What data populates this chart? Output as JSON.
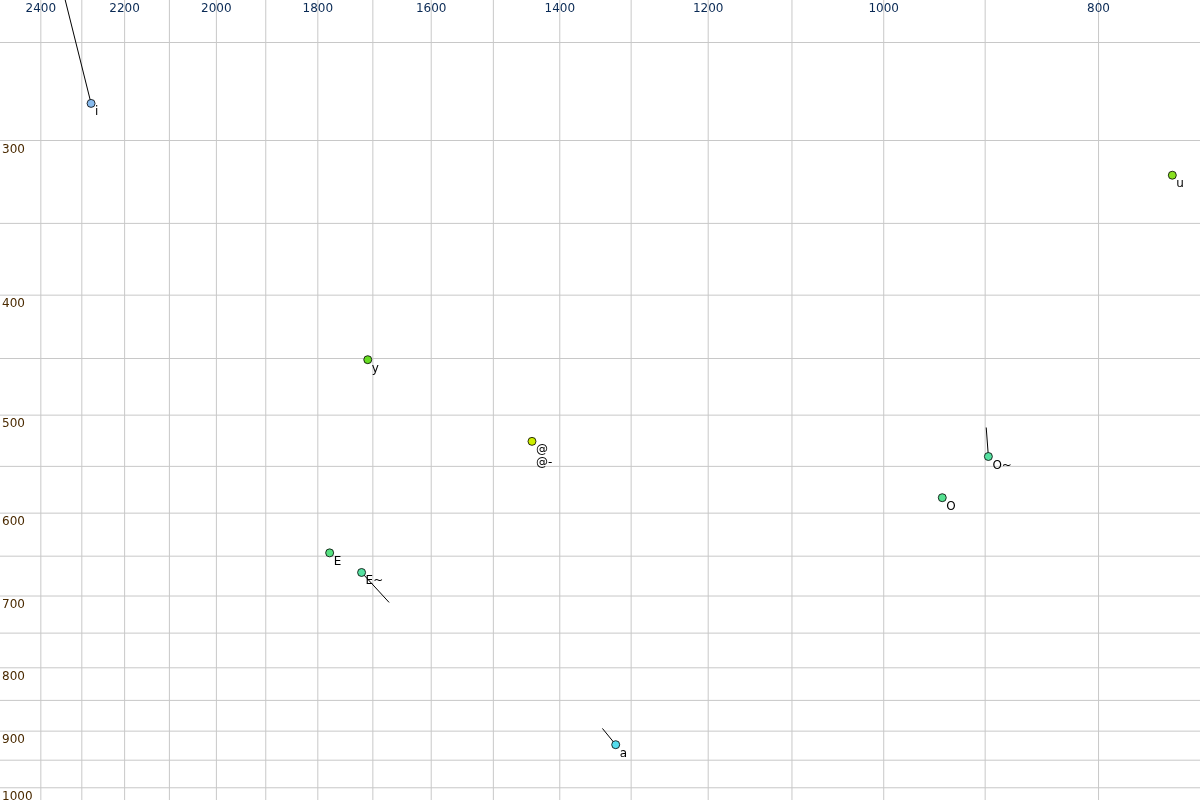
{
  "chart_data": {
    "type": "scatter",
    "log": "xy",
    "grid": true,
    "marker": "circle",
    "xlim": [
      2504,
      720
    ],
    "ylim": [
      1023,
      231
    ],
    "xticks": [
      2400,
      {
        "value": 2300,
        "label": null
      },
      2200,
      {
        "value": 2100,
        "label": null
      },
      2000,
      {
        "value": 1900,
        "label": null
      },
      1800,
      {
        "value": 1700,
        "label": null
      },
      1600,
      {
        "value": 1500,
        "label": null
      },
      1400,
      {
        "value": 1300,
        "label": null
      },
      1200,
      {
        "value": 1100,
        "label": null
      },
      1000,
      {
        "value": 900,
        "label": null
      },
      800
    ],
    "yticks": [
      {
        "value": 250,
        "label": null
      },
      300,
      {
        "value": 350,
        "label": null
      },
      400,
      {
        "value": 450,
        "label": null
      },
      500,
      {
        "value": 550,
        "label": null
      },
      600,
      {
        "value": 650,
        "label": null
      },
      700,
      {
        "value": 750,
        "label": null
      },
      800,
      {
        "value": 850,
        "label": null
      },
      900,
      {
        "value": 950,
        "label": null
      },
      1000
    ],
    "series": [
      {
        "x": [
          2278,
          741,
          1709,
          1441,
          897,
          941,
          1778,
          1720,
          1321
        ],
        "values": [
          280,
          320,
          451,
          525,
          540,
          583,
          646,
          670,
          923
        ],
        "colors": [
          "#88bbee",
          "#88e020",
          "#66dd22",
          "#ccee00",
          "#55e0a0",
          "#55e090",
          "#55e080",
          "#55e0a0",
          "#55ddee"
        ]
      },
      {
        "type": "line",
        "color": "#000000",
        "marker": "none",
        "x": [
          2340,
          2278
        ],
        "values": [
          231,
          280
        ]
      },
      {
        "type": "line",
        "color": "#000000",
        "marker": "none",
        "x": [
          899,
          897
        ],
        "values": [
          512,
          540
        ]
      },
      {
        "type": "line",
        "color": "#000000",
        "marker": "none",
        "x": [
          1720,
          1672
        ],
        "values": [
          670,
          708
        ]
      },
      {
        "type": "line",
        "color": "#000000",
        "marker": "none",
        "x": [
          1339,
          1321
        ],
        "values": [
          896,
          923
        ]
      }
    ],
    "annotations": [
      {
        "text": "i",
        "x": 2278,
        "y": 280
      },
      {
        "text": "u",
        "x": 741,
        "y": 320
      },
      {
        "text": "y",
        "x": 1709,
        "y": 451
      },
      {
        "text": "@",
        "x": 1441,
        "y": 525
      },
      {
        "text": "@-",
        "x": 1441,
        "y": 525
      },
      {
        "text": "O~",
        "x": 897,
        "y": 540
      },
      {
        "text": "O",
        "x": 941,
        "y": 583
      },
      {
        "text": "E",
        "x": 1778,
        "y": 646
      },
      {
        "text": "E~",
        "x": 1720,
        "y": 670
      },
      {
        "text": "a",
        "x": 1321,
        "y": 923
      }
    ]
  }
}
